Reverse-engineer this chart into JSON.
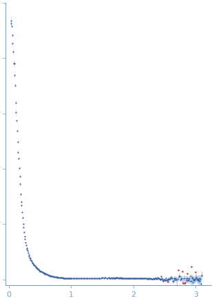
{
  "xlim": [
    -0.05,
    3.25
  ],
  "x_ticks": [
    0,
    1,
    2,
    3
  ],
  "point_color": "#3a5fa0",
  "outlier_color": "#cc2222",
  "error_color": "#a8c4e0",
  "axis_color": "#7aa0c4",
  "tick_color": "#7aa0c4",
  "background": "#ffffff",
  "point_size": 2.5,
  "figsize": [
    3.11,
    4.37
  ],
  "dpi": 100
}
